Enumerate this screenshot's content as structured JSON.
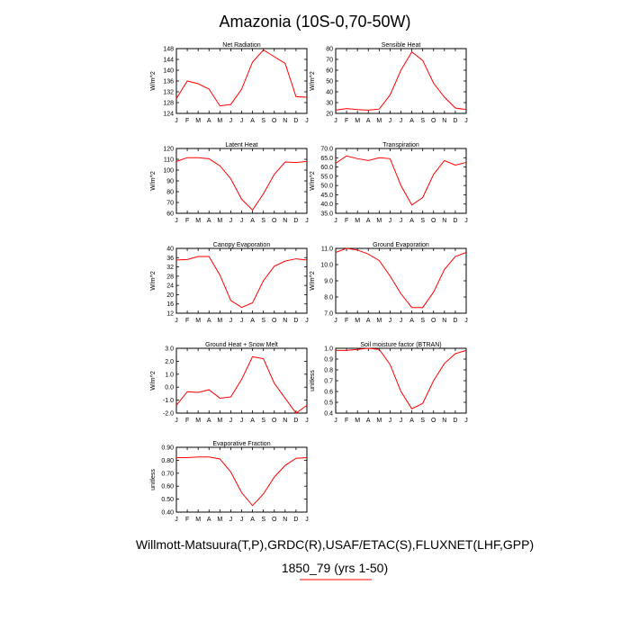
{
  "figure": {
    "title": "Amazonia (10S-0,70-50W)",
    "footer_line1": "Willmott-Matsuura(T,P),GRDC(R),USAF/ETAC(S),FLUXNET(LHF,GPP)",
    "footer_line2": "1850_79 (yrs 1-50)",
    "series_color": "#ff0000",
    "legend_line_color": "#ff0000",
    "axis_color": "#000000"
  },
  "chart_data": [
    {
      "type": "line",
      "id": "net-radiation",
      "title": "Net Radiation",
      "ylabel": "W/m^2",
      "categories": [
        "J",
        "F",
        "M",
        "A",
        "M",
        "J",
        "J",
        "A",
        "S",
        "O",
        "N",
        "D",
        "J"
      ],
      "ylim": [
        124,
        148
      ],
      "yticks": [
        124,
        128,
        132,
        136,
        140,
        144,
        148
      ],
      "ytick_labels": [
        "124",
        "128",
        "132",
        "136",
        "140",
        "144",
        "148"
      ],
      "values": [
        129.5,
        136.0,
        135.0,
        133.0,
        126.8,
        127.3,
        133.0,
        143.0,
        147.5,
        145.0,
        142.5,
        130.2,
        130.0
      ]
    },
    {
      "type": "line",
      "id": "sensible-heat",
      "title": "Sensible Heat",
      "ylabel": "W/m^2",
      "categories": [
        "J",
        "F",
        "M",
        "A",
        "M",
        "J",
        "J",
        "A",
        "S",
        "O",
        "N",
        "D",
        "J"
      ],
      "ylim": [
        20,
        80
      ],
      "yticks": [
        20,
        30,
        40,
        50,
        60,
        70,
        80
      ],
      "ytick_labels": [
        "20",
        "30",
        "40",
        "50",
        "60",
        "70",
        "80"
      ],
      "values": [
        23,
        24.5,
        23.5,
        23,
        24,
        37,
        60,
        77,
        69,
        48,
        35,
        25,
        23.5
      ]
    },
    {
      "type": "line",
      "id": "latent-heat",
      "title": "Latent Heat",
      "ylabel": "W/m^2",
      "categories": [
        "J",
        "F",
        "M",
        "A",
        "M",
        "J",
        "J",
        "A",
        "S",
        "O",
        "N",
        "D",
        "J"
      ],
      "ylim": [
        60,
        120
      ],
      "yticks": [
        60,
        70,
        80,
        90,
        100,
        110,
        120
      ],
      "ytick_labels": [
        "60",
        "70",
        "80",
        "90",
        "100",
        "110",
        "120"
      ],
      "values": [
        108,
        111.5,
        111.5,
        110.5,
        104,
        92,
        73,
        63,
        78,
        96,
        107.5,
        107,
        108
      ]
    },
    {
      "type": "line",
      "id": "transpiration",
      "title": "Transpiration",
      "ylabel": "W/m^2",
      "categories": [
        "J",
        "F",
        "M",
        "A",
        "M",
        "J",
        "J",
        "A",
        "S",
        "O",
        "N",
        "D",
        "J"
      ],
      "ylim": [
        35,
        70
      ],
      "yticks": [
        35,
        40,
        45,
        50,
        55,
        60,
        65,
        70
      ],
      "ytick_labels": [
        "35.0",
        "40.0",
        "45.0",
        "50.0",
        "55.0",
        "60.0",
        "65.0",
        "70.0"
      ],
      "values": [
        62,
        66,
        64.5,
        63.5,
        65,
        64.5,
        50,
        39.5,
        43.5,
        56,
        63.5,
        61,
        62.5
      ]
    },
    {
      "type": "line",
      "id": "canopy-evaporation",
      "title": "Canopy Evaporation",
      "ylabel": "W/m^2",
      "categories": [
        "J",
        "F",
        "M",
        "A",
        "M",
        "J",
        "J",
        "A",
        "S",
        "O",
        "N",
        "D",
        "J"
      ],
      "ylim": [
        12,
        40
      ],
      "yticks": [
        12,
        16,
        20,
        24,
        28,
        32,
        36,
        40
      ],
      "ytick_labels": [
        "12",
        "16",
        "20",
        "24",
        "28",
        "32",
        "36",
        "40"
      ],
      "values": [
        35,
        35.2,
        36.5,
        36.5,
        28.5,
        17.5,
        14.5,
        16.5,
        26,
        32.3,
        34.5,
        35.5,
        35
      ]
    },
    {
      "type": "line",
      "id": "ground-evaporation",
      "title": "Ground Evaporation",
      "ylabel": "W/m^2",
      "categories": [
        "J",
        "F",
        "M",
        "A",
        "M",
        "J",
        "J",
        "A",
        "S",
        "O",
        "N",
        "D",
        "J"
      ],
      "ylim": [
        7.0,
        11.0
      ],
      "yticks": [
        7.0,
        8.0,
        9.0,
        10.0,
        11.0
      ],
      "ytick_labels": [
        "7.0",
        "8.0",
        "9.0",
        "10.0",
        "11.0"
      ],
      "values": [
        10.75,
        11.0,
        10.9,
        10.65,
        10.25,
        9.3,
        8.2,
        7.35,
        7.35,
        8.3,
        9.7,
        10.5,
        10.75
      ]
    },
    {
      "type": "line",
      "id": "ground-heat-snow-melt",
      "title": "Ground Heat + Snow Melt",
      "ylabel": "W/m^2",
      "categories": [
        "J",
        "F",
        "M",
        "A",
        "M",
        "J",
        "J",
        "A",
        "S",
        "O",
        "N",
        "D",
        "J"
      ],
      "ylim": [
        -2.0,
        3.0
      ],
      "yticks": [
        -2.0,
        -1.0,
        0.0,
        1.0,
        2.0,
        3.0
      ],
      "ytick_labels": [
        "-2.0",
        "-1.0",
        "0.0",
        "1.0",
        "2.0",
        "3.0"
      ],
      "values": [
        -1.4,
        -0.35,
        -0.4,
        -0.2,
        -0.85,
        -0.75,
        0.6,
        2.35,
        2.2,
        0.3,
        -0.85,
        -2.0,
        -1.4
      ]
    },
    {
      "type": "line",
      "id": "soil-moisture-factor",
      "title": "Soil moisture factor (BTRAN)",
      "ylabel": "unitless",
      "categories": [
        "J",
        "F",
        "M",
        "A",
        "M",
        "J",
        "J",
        "A",
        "S",
        "O",
        "N",
        "D",
        "J"
      ],
      "ylim": [
        0.4,
        1.0
      ],
      "yticks": [
        0.4,
        0.5,
        0.6,
        0.7,
        0.8,
        0.9,
        1.0
      ],
      "ytick_labels": [
        "0.4",
        "0.5",
        "0.6",
        "0.7",
        "0.8",
        "0.9",
        "1.0"
      ],
      "values": [
        0.98,
        0.98,
        0.99,
        1.0,
        0.99,
        0.85,
        0.6,
        0.44,
        0.49,
        0.7,
        0.86,
        0.95,
        0.98
      ]
    },
    {
      "type": "line",
      "id": "evaporative-fraction",
      "title": "Evaporative Fraction",
      "ylabel": "unitless",
      "categories": [
        "J",
        "F",
        "M",
        "A",
        "M",
        "J",
        "J",
        "A",
        "S",
        "O",
        "N",
        "D",
        "J"
      ],
      "ylim": [
        0.4,
        0.9
      ],
      "yticks": [
        0.4,
        0.5,
        0.6,
        0.7,
        0.8,
        0.9
      ],
      "ytick_labels": [
        "0.40",
        "0.50",
        "0.60",
        "0.70",
        "0.80",
        "0.90"
      ],
      "values": [
        0.82,
        0.82,
        0.825,
        0.825,
        0.81,
        0.71,
        0.55,
        0.45,
        0.54,
        0.67,
        0.76,
        0.815,
        0.82
      ]
    }
  ]
}
